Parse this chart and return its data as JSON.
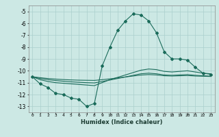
{
  "xlabel": "Humidex (Indice chaleur)",
  "background_color": "#cce8e4",
  "grid_color": "#aacfcc",
  "line_color": "#1a6b5a",
  "x": [
    0,
    1,
    2,
    3,
    4,
    5,
    6,
    7,
    8,
    9,
    10,
    11,
    12,
    13,
    14,
    15,
    16,
    17,
    18,
    19,
    20,
    21,
    22,
    23
  ],
  "line1": [
    -10.5,
    -11.1,
    -11.4,
    -11.9,
    -12.0,
    -12.3,
    -12.4,
    -13.0,
    -12.75,
    -9.6,
    -8.0,
    -6.6,
    -5.8,
    -5.2,
    -5.3,
    -5.8,
    -6.8,
    -8.4,
    -9.0,
    -9.0,
    -9.1,
    -9.7,
    -10.2,
    -10.3
  ],
  "line2": [
    -10.5,
    -10.75,
    -10.9,
    -11.0,
    -11.05,
    -11.1,
    -11.15,
    -11.2,
    -11.25,
    -11.0,
    -10.75,
    -10.55,
    -10.35,
    -10.15,
    -9.95,
    -9.85,
    -9.9,
    -10.05,
    -10.1,
    -10.05,
    -10.0,
    -10.1,
    -10.2,
    -10.25
  ],
  "line3": [
    -10.5,
    -10.65,
    -10.75,
    -10.82,
    -10.88,
    -10.93,
    -10.97,
    -11.0,
    -11.02,
    -10.9,
    -10.78,
    -10.65,
    -10.52,
    -10.38,
    -10.25,
    -10.2,
    -10.25,
    -10.35,
    -10.38,
    -10.35,
    -10.32,
    -10.38,
    -10.42,
    -10.45
  ],
  "line4": [
    -10.5,
    -10.58,
    -10.65,
    -10.7,
    -10.74,
    -10.77,
    -10.79,
    -10.8,
    -10.81,
    -10.75,
    -10.68,
    -10.6,
    -10.52,
    -10.44,
    -10.36,
    -10.32,
    -10.35,
    -10.42,
    -10.44,
    -10.42,
    -10.4,
    -10.44,
    -10.46,
    -10.48
  ],
  "ylim": [
    -13.5,
    -4.5
  ],
  "yticks": [
    -13,
    -12,
    -11,
    -10,
    -9,
    -8,
    -7,
    -6,
    -5
  ],
  "xtick_labels": [
    "0",
    "1",
    "2",
    "3",
    "4",
    "5",
    "6",
    "7",
    "8",
    "9",
    "1011",
    "1213",
    "1415",
    "1617",
    "1819",
    "2021",
    "2223"
  ]
}
